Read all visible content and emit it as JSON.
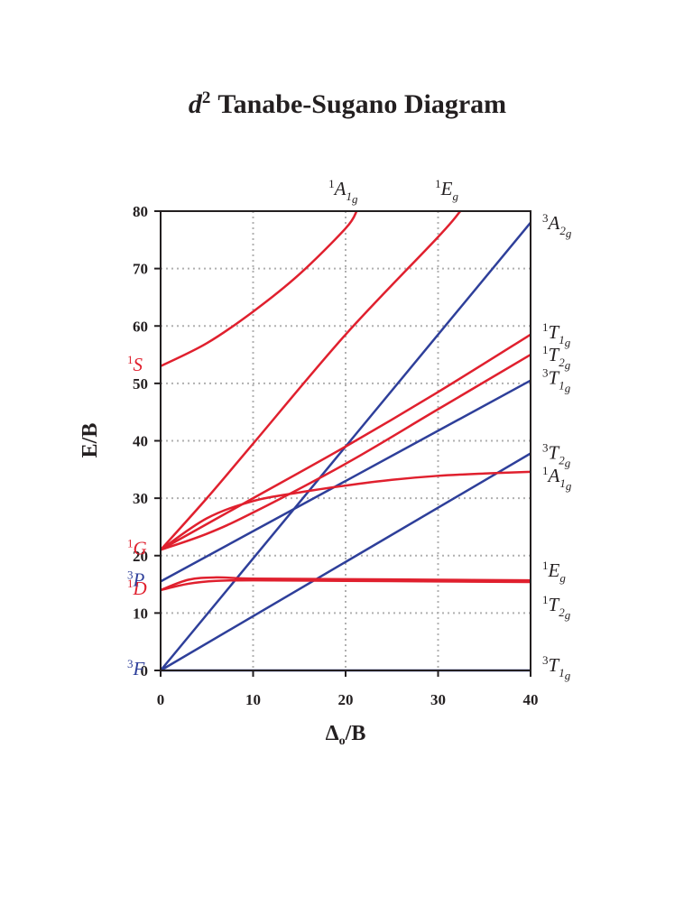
{
  "title": {
    "prefix": "d",
    "sup": "2",
    "rest": "Tanabe-Sugano Diagram"
  },
  "colors": {
    "singlet": "#e0202e",
    "triplet": "#2e3f9a",
    "grid": "#b0b0b0",
    "axis": "#231f20"
  },
  "chart_data": {
    "type": "line",
    "xlabel": {
      "main": "Δ",
      "sub": "o",
      "rest": "/B"
    },
    "ylabel": "E/B",
    "xlim": [
      0,
      40
    ],
    "ylim": [
      0,
      80
    ],
    "xticks": [
      0,
      10,
      20,
      30,
      40
    ],
    "yticks": [
      0,
      10,
      20,
      30,
      40,
      50,
      60,
      70,
      80
    ],
    "grid": true,
    "free_ion_terms": [
      {
        "key": "3F",
        "mult": "3",
        "letter": "F",
        "energy": 0,
        "spin": "triplet"
      },
      {
        "key": "1D",
        "mult": "1",
        "letter": "D",
        "energy": 14,
        "spin": "singlet"
      },
      {
        "key": "3P",
        "mult": "3",
        "letter": "P",
        "energy": 15.5,
        "spin": "triplet"
      },
      {
        "key": "1G",
        "mult": "1",
        "letter": "G",
        "energy": 21,
        "spin": "singlet"
      },
      {
        "key": "1S",
        "mult": "1",
        "letter": "S",
        "energy": 53,
        "spin": "singlet"
      }
    ],
    "series": [
      {
        "key": "s1A1g_S",
        "mult": "1",
        "symbol": "A",
        "sub": "1g",
        "spin": "singlet",
        "x": [
          0,
          5,
          10,
          15,
          20,
          21.2
        ],
        "y": [
          53,
          57,
          62.5,
          69,
          77,
          80
        ]
      },
      {
        "key": "s1Eg_top",
        "mult": "1",
        "symbol": "E",
        "sub": "g",
        "spin": "singlet",
        "x": [
          0,
          5,
          10,
          20,
          30,
          32.4
        ],
        "y": [
          21,
          30,
          39.5,
          58.5,
          75.5,
          80
        ]
      },
      {
        "key": "s3A2g",
        "mult": "3",
        "symbol": "A",
        "sub": "2g",
        "spin": "triplet",
        "x": [
          0,
          40
        ],
        "y": [
          0,
          78
        ]
      },
      {
        "key": "s1T1g",
        "mult": "1",
        "symbol": "T",
        "sub": "1g",
        "spin": "singlet",
        "x": [
          0,
          5,
          10,
          20,
          30,
          40
        ],
        "y": [
          21,
          25.5,
          30,
          39,
          48.5,
          58.5
        ]
      },
      {
        "key": "s1T2g",
        "mult": "1",
        "symbol": "T",
        "sub": "2g",
        "spin": "singlet",
        "x": [
          0,
          5,
          10,
          20,
          30,
          40
        ],
        "y": [
          21,
          23.8,
          27.5,
          36,
          45.5,
          55
        ]
      },
      {
        "key": "s3T1g_P",
        "mult": "3",
        "symbol": "T",
        "sub": "1g",
        "spin": "triplet",
        "x": [
          0,
          40
        ],
        "y": [
          15.5,
          50.5
        ]
      },
      {
        "key": "s3T2g",
        "mult": "3",
        "symbol": "T",
        "sub": "2g",
        "spin": "triplet",
        "x": [
          0,
          40
        ],
        "y": [
          0,
          37.8
        ]
      },
      {
        "key": "s1A1g_G",
        "mult": "1",
        "symbol": "A",
        "sub": "1g",
        "spin": "singlet",
        "x": [
          0,
          5,
          10,
          15,
          20,
          25,
          30,
          35,
          40
        ],
        "y": [
          21,
          26.5,
          29.5,
          31,
          32.2,
          33.2,
          33.9,
          34.3,
          34.6
        ]
      },
      {
        "key": "s1Eg_D",
        "mult": "1",
        "symbol": "E",
        "sub": "g",
        "spin": "singlet",
        "x": [
          0,
          3,
          6,
          10,
          20,
          30,
          40
        ],
        "y": [
          14,
          15.8,
          16.2,
          16,
          15.9,
          15.8,
          15.7
        ]
      },
      {
        "key": "s1T2g_D",
        "mult": "1",
        "symbol": "T",
        "sub": "2g",
        "spin": "singlet",
        "x": [
          0,
          3,
          6,
          10,
          20,
          30,
          40
        ],
        "y": [
          14,
          15.1,
          15.6,
          15.7,
          15.6,
          15.5,
          15.4
        ]
      },
      {
        "key": "s3T1g_F",
        "mult": "3",
        "symbol": "T",
        "sub": "1g",
        "spin": "triplet",
        "x": [
          0,
          40
        ],
        "y": [
          0,
          0
        ]
      }
    ],
    "right_labels": [
      {
        "series": "s3A2g",
        "mult": "3",
        "symbol": "A",
        "sub": "2g",
        "spin": "triplet",
        "level": 77.5
      },
      {
        "series": "s1T1g",
        "mult": "1",
        "symbol": "T",
        "sub": "1g",
        "spin": "singlet",
        "level": 58.5
      },
      {
        "series": "s1T2g",
        "mult": "1",
        "symbol": "T",
        "sub": "2g",
        "spin": "singlet",
        "level": 54.5
      },
      {
        "series": "s3T1g_P",
        "mult": "3",
        "symbol": "T",
        "sub": "1g",
        "spin": "triplet",
        "level": 50.5
      },
      {
        "series": "s3T2g",
        "mult": "3",
        "symbol": "T",
        "sub": "2g",
        "spin": "triplet",
        "level": 37.5
      },
      {
        "series": "s1A1g_G",
        "mult": "1",
        "symbol": "A",
        "sub": "1g",
        "spin": "singlet",
        "level": 33.5
      },
      {
        "series": "s1Eg_D",
        "mult": "1",
        "symbol": "E",
        "sub": "g",
        "spin": "singlet",
        "level": 17
      },
      {
        "series": "s1T2g_D",
        "mult": "1",
        "symbol": "T",
        "sub": "2g",
        "spin": "singlet",
        "level": 11
      },
      {
        "series": "s3T1g_F",
        "mult": "3",
        "symbol": "T",
        "sub": "1g",
        "spin": "triplet",
        "level": 0.5
      }
    ],
    "top_labels": [
      {
        "series": "s1A1g_S",
        "mult": "1",
        "symbol": "A",
        "sub": "1g",
        "spin": "singlet",
        "x": 21.2
      },
      {
        "series": "s1Eg_top",
        "mult": "1",
        "symbol": "E",
        "sub": "g",
        "spin": "singlet",
        "x": 32.4
      }
    ]
  }
}
